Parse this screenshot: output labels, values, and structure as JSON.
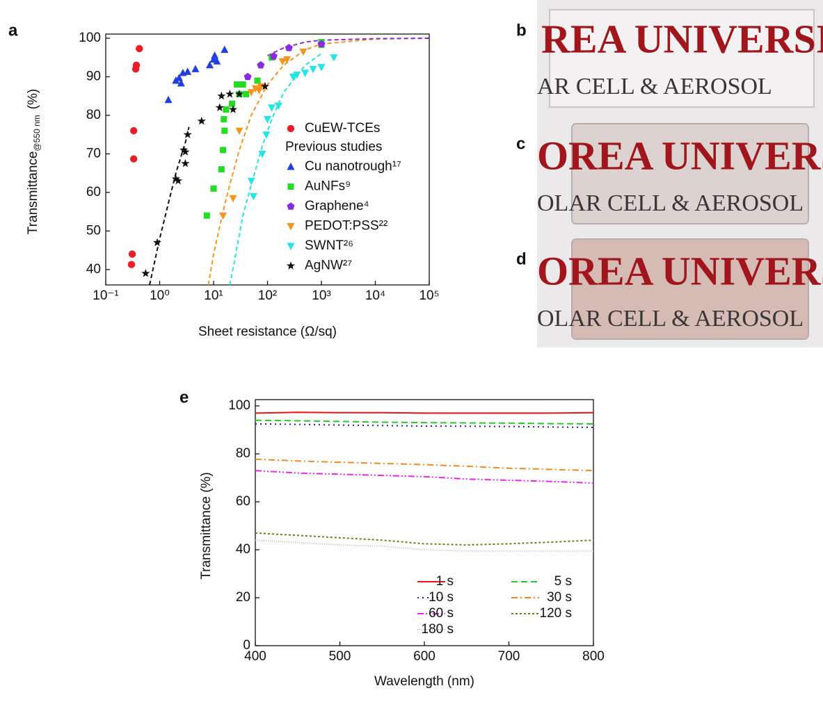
{
  "chart_data": [
    {
      "type": "scatter",
      "panel": "a",
      "xlabel": "Sheet resistance (Ω/sq)",
      "ylabel": "Transmittance",
      "ylabel_sub": "@550 nm",
      "ylabel_unit": "(%)",
      "xlog": true,
      "xlim": [
        0.1,
        100000
      ],
      "xticks": [
        {
          "value": 0.1,
          "label": "10⁻¹"
        },
        {
          "value": 1,
          "label": "10⁰"
        },
        {
          "value": 10,
          "label": "10¹"
        },
        {
          "value": 100,
          "label": "10²"
        },
        {
          "value": 1000,
          "label": "10³"
        },
        {
          "value": 10000,
          "label": "10⁴"
        },
        {
          "value": 100000,
          "label": "10⁵"
        }
      ],
      "ylim": [
        36,
        100
      ],
      "yticks": [
        40,
        50,
        60,
        70,
        80,
        90,
        100
      ],
      "legend_heading": "Previous studies",
      "series": [
        {
          "name": "CuEW-TCEs",
          "color": "#ee1c24",
          "marker": "circle",
          "x": [
            0.42,
            0.37,
            0.36,
            0.33,
            0.33,
            0.31,
            0.3
          ],
          "values": [
            97.3,
            93,
            92,
            76,
            68.7,
            44,
            41.3
          ]
        },
        {
          "name": "Cu nanotrough¹⁷",
          "color": "#1f3fe0",
          "marker": "triangle-up",
          "x": [
            1.45,
            2.0,
            2.3,
            2.5,
            2.7,
            3.3,
            4.6,
            8.5,
            10,
            10.5,
            11.5,
            16
          ],
          "values": [
            84,
            89,
            89.7,
            88.3,
            91,
            91.3,
            92,
            93,
            94.5,
            95.5,
            94,
            97
          ]
        },
        {
          "name": "AuNFs⁹",
          "color": "#22dd22",
          "marker": "square",
          "x": [
            7.5,
            10,
            14,
            15,
            15.5,
            16,
            17,
            22,
            27,
            30,
            35,
            40,
            65,
            120,
            1000,
            1000
          ],
          "values": [
            54,
            61,
            66,
            71,
            79,
            76,
            81.5,
            83,
            88,
            85.5,
            88,
            85.5,
            89,
            95,
            98.3,
            99
          ]
        },
        {
          "name": "Graphene⁴",
          "color": "#8a2be2",
          "marker": "pentagon",
          "x": [
            43,
            75,
            130,
            250,
            1000
          ],
          "values": [
            90,
            93,
            95.3,
            97.5,
            98.5
          ]
        },
        {
          "name": "PEDOT:PSS²²",
          "color": "#f7941d",
          "marker": "triangle-down",
          "x": [
            15,
            23,
            30,
            50,
            60,
            75,
            70,
            190,
            230,
            460
          ],
          "values": [
            54,
            58.5,
            76,
            86,
            87,
            87.5,
            86.5,
            94,
            94.5,
            96.5
          ]
        },
        {
          "name": "SWNT²⁶",
          "color": "#22e5e5",
          "marker": "triangle-down",
          "x": [
            50,
            55,
            80,
            95,
            100,
            120,
            160,
            300,
            350,
            500,
            700,
            1000,
            1700
          ],
          "values": [
            63,
            59,
            70,
            75,
            79,
            82,
            82.5,
            90,
            90.5,
            91,
            92,
            92.5,
            95
          ]
        },
        {
          "name": "AgNW²⁷",
          "color": "#111111",
          "marker": "star",
          "x": [
            0.55,
            0.9,
            2,
            2.2,
            2.8,
            3.0,
            3.0,
            3.3,
            6,
            13,
            14,
            20,
            23,
            30,
            90
          ],
          "values": [
            39,
            47,
            63.5,
            63,
            71,
            67.5,
            70.5,
            75,
            78.5,
            82,
            85,
            85.5,
            81.5,
            85.5,
            87.5
          ]
        }
      ],
      "fits": [
        {
          "color": "#111111",
          "x": [
            0.65,
            1,
            1.5,
            2,
            3,
            3.5
          ],
          "values": [
            36,
            48,
            58,
            65,
            73,
            77
          ]
        },
        {
          "color": "#f7941d",
          "x": [
            8,
            10,
            15,
            20,
            30,
            50,
            100,
            200,
            500,
            1000,
            10000,
            100000
          ],
          "values": [
            36,
            44,
            55,
            62,
            71,
            80,
            88,
            93,
            97,
            98.5,
            99.8,
            100
          ]
        },
        {
          "color": "#22e5e5",
          "x": [
            20,
            25,
            35,
            50,
            80,
            120,
            200,
            500,
            1000
          ],
          "values": [
            36,
            43,
            54,
            62,
            72,
            79,
            86,
            93,
            96
          ]
        },
        {
          "color": "#8a2be2",
          "x": [
            100,
            200,
            500,
            1000,
            10000,
            100000
          ],
          "values": [
            95.5,
            97.5,
            99,
            99.5,
            99.9,
            100
          ]
        }
      ]
    },
    {
      "type": "line",
      "panel": "e",
      "xlabel": "Wavelength (nm)",
      "ylabel": "Transmittance (%)",
      "x": [
        400,
        450,
        500,
        550,
        600,
        650,
        700,
        750,
        800
      ],
      "xlim": [
        400,
        800
      ],
      "xticks": [
        400,
        500,
        600,
        700,
        800
      ],
      "ylim": [
        0,
        100
      ],
      "yticks": [
        0,
        20,
        40,
        60,
        80,
        100
      ],
      "legend": "lower right",
      "series": [
        {
          "name": "1 s",
          "color": "#ee1111",
          "dash": "none",
          "values": [
            97,
            97.3,
            97.2,
            97.2,
            97,
            97,
            97,
            97,
            97.2
          ]
        },
        {
          "name": "5 s",
          "color": "#22cc22",
          "dash": "9,5",
          "values": [
            94,
            93.8,
            93.5,
            93.2,
            93,
            92.9,
            92.8,
            92.6,
            92.5
          ]
        },
        {
          "name": "10 s",
          "color": "#1a1acc",
          "dash": "2,5",
          "values": [
            92.5,
            92.3,
            92,
            91.8,
            91.6,
            91.5,
            91.4,
            91.2,
            91
          ]
        },
        {
          "name": "30 s",
          "color": "#f7861d",
          "dash": "9,4,2,4",
          "values": [
            77.8,
            77,
            76.5,
            76,
            75.5,
            74.8,
            74,
            73.5,
            73
          ]
        },
        {
          "name": "60 s",
          "color": "#ee22ee",
          "dash": "9,3,2,3,2,3",
          "values": [
            73,
            72,
            71.5,
            71,
            70.5,
            69.5,
            69,
            68.5,
            67.8
          ]
        },
        {
          "name": "120 s",
          "color": "#7a7a10",
          "dash": "3,3",
          "values": [
            47,
            46,
            45,
            44,
            42.5,
            42,
            42.5,
            43.2,
            44
          ]
        },
        {
          "name": "180 s",
          "color": "#bbbbbb",
          "dash": "1,2",
          "values": [
            44,
            43,
            42,
            41.5,
            40,
            39.5,
            39.5,
            39.5,
            39.5
          ]
        }
      ]
    }
  ],
  "photos": [
    {
      "label": "b",
      "line1": "REA UNIVERSI",
      "line2": "AR CELL & AEROSOL",
      "tint": "#f3f1f1"
    },
    {
      "label": "c",
      "line1": "OREA UNIVERS",
      "line2": "OLAR CELL & AEROSOL",
      "tint": "#dcd3d1"
    },
    {
      "label": "d",
      "line1": "OREA UNIVERS",
      "line2": "OLAR CELL & AEROSOL",
      "tint": "#d6bbb5"
    }
  ]
}
